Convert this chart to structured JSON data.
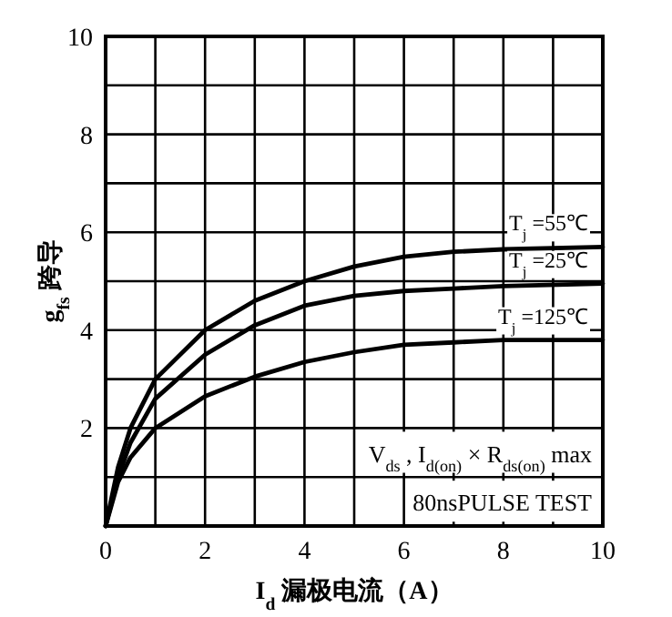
{
  "chart_data": {
    "type": "line",
    "xlabel": "I$_{d}$ 漏极电流（A）",
    "ylabel": "g$_{fs}$ 跨导",
    "xlim": [
      0,
      10
    ],
    "ylim": [
      0,
      10
    ],
    "xticks": [
      0,
      {
        "value": 1,
        "label": null
      },
      2,
      {
        "value": 3,
        "label": null
      },
      4,
      {
        "value": 5,
        "label": null
      },
      6,
      {
        "value": 7,
        "label": null
      },
      8,
      {
        "value": 9,
        "label": null
      },
      10
    ],
    "yticks": [
      {
        "value": 0,
        "label": null
      },
      {
        "value": 1,
        "label": null
      },
      2,
      {
        "value": 3,
        "label": null
      },
      4,
      {
        "value": 5,
        "label": null
      },
      6,
      {
        "value": 7,
        "label": null
      },
      8,
      {
        "value": 9,
        "label": null
      },
      10
    ],
    "grid": true,
    "marker": "none",
    "line_style": "solid",
    "x": [
      0,
      0.25,
      0.5,
      1,
      2,
      3,
      4,
      5,
      6,
      7,
      8,
      10
    ],
    "series": [
      {
        "name": "T$_{j}$ =55℃",
        "color": "#000000",
        "values": [
          0,
          1.2,
          2.0,
          3.0,
          4.0,
          4.6,
          5.0,
          5.3,
          5.5,
          5.6,
          5.65,
          5.7
        ]
      },
      {
        "name": "T$_{j}$ =25℃",
        "color": "#000000",
        "values": [
          0,
          1.0,
          1.7,
          2.6,
          3.5,
          4.1,
          4.5,
          4.7,
          4.8,
          4.85,
          4.9,
          4.95
        ]
      },
      {
        "name": "T$_{j}$ =125℃",
        "color": "#000000",
        "values": [
          0,
          0.9,
          1.4,
          2.0,
          2.65,
          3.05,
          3.35,
          3.55,
          3.7,
          3.75,
          3.8,
          3.8
        ]
      }
    ],
    "annotations": [
      "V$_{ds}$ , I$_{d(on)}$ × R$_{ds(on)}$ max",
      "80nsPULSE TEST"
    ]
  }
}
